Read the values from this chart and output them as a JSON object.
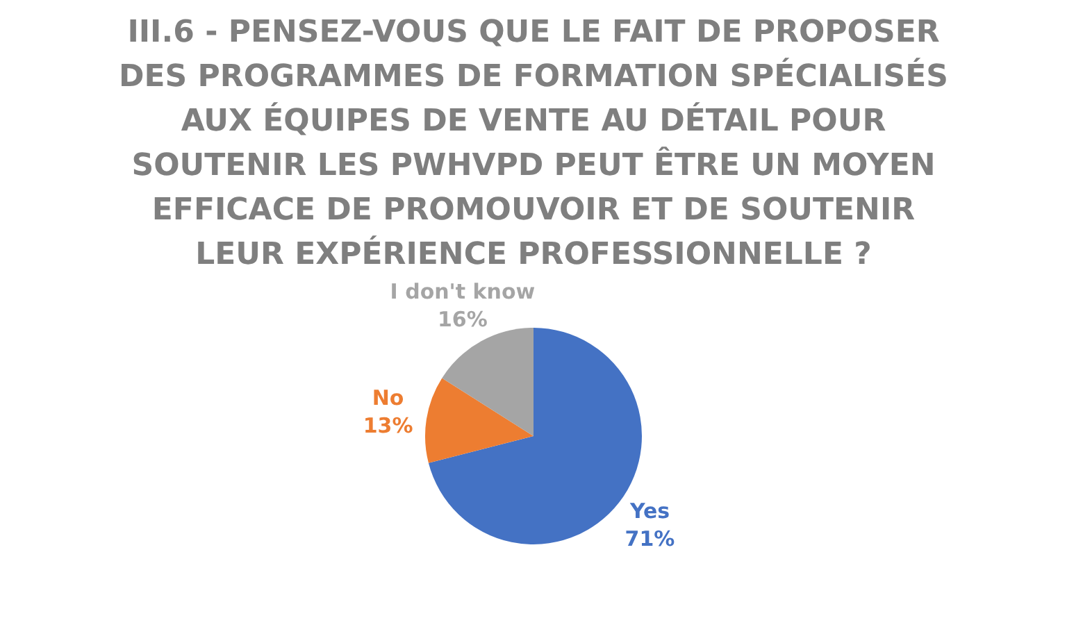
{
  "chart_data": {
    "type": "pie",
    "title": "III.6 - PENSEZ-VOUS QUE LE FAIT DE PROPOSER DES PROGRAMMES DE FORMATION SPÉCIALISÉS AUX ÉQUIPES DE VENTE AU DÉTAIL POUR SOUTENIR LES PWHVPD PEUT ÊTRE UN MOYEN EFFICACE DE PROMOUVOIR ET DE SOUTENIR LEUR EXPÉRIENCE PROFESSIONNELLE ?",
    "categories": [
      "Yes",
      "No",
      "I don't know"
    ],
    "values": [
      71,
      13,
      16
    ],
    "colors": [
      "#4472c4",
      "#ed7d31",
      "#a5a5a5"
    ],
    "value_labels": [
      "71%",
      "13%",
      "16%"
    ]
  }
}
